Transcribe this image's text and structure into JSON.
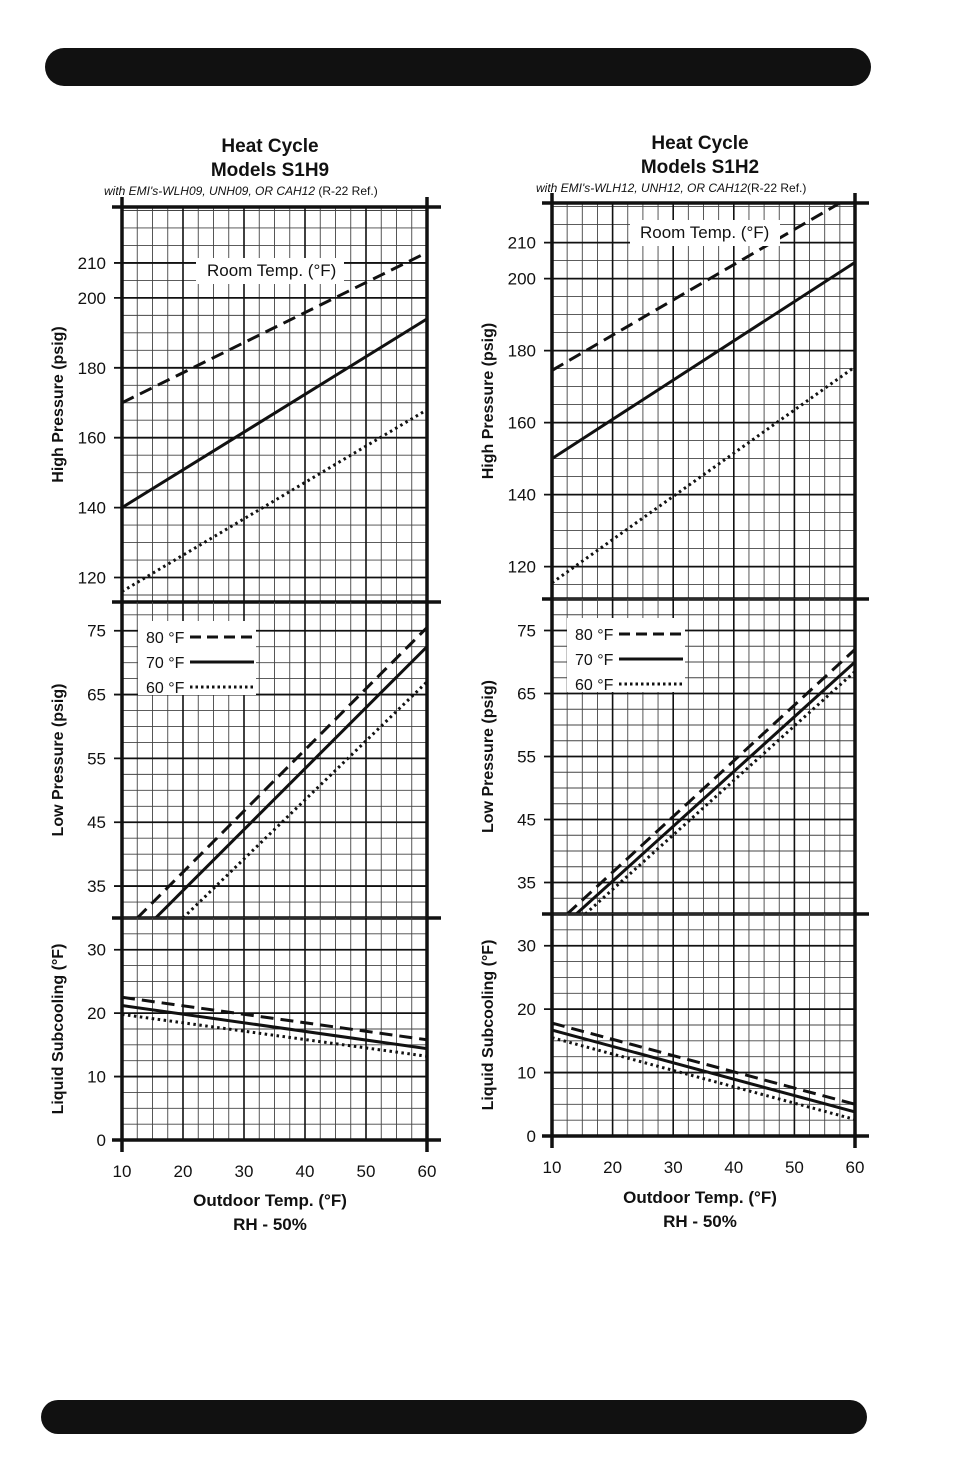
{
  "header_bar": {
    "color": "#111111"
  },
  "footer_bar": {
    "color": "#111111"
  },
  "chart_data": [
    {
      "type": "line",
      "title": "Heat Cycle",
      "subtitle": "Models S1H9",
      "note_main": "with EMI's-WLH09, UNH09, OR CAH12 ",
      "note_suffix": "(R-22 Ref.)",
      "xlabel": "Outdoor Temp. (°F)",
      "xlabel2": "RH - 50%",
      "x_ticks": [
        "10",
        "20",
        "30",
        "40",
        "50",
        "60"
      ],
      "xlim": [
        10,
        60
      ],
      "room_temp_label": "Room Temp. (°F)",
      "legend": [
        {
          "label": "80 °F",
          "style": "dashed"
        },
        {
          "label": "70 °F",
          "style": "solid"
        },
        {
          "label": "60 °F",
          "style": "dotted"
        }
      ],
      "panels": [
        {
          "ylabel": "High Pressure (psig)",
          "ylim": [
            113,
            226
          ],
          "y_ticks": [
            120,
            140,
            160,
            180,
            200,
            210
          ],
          "series": [
            {
              "name": "80 °F",
              "style": "dashed",
              "x": [
                10,
                60
              ],
              "y": [
                170,
                213
              ]
            },
            {
              "name": "70 °F",
              "style": "solid",
              "x": [
                10,
                60
              ],
              "y": [
                140,
                194
              ]
            },
            {
              "name": "60 °F",
              "style": "dotted",
              "x": [
                10,
                60
              ],
              "y": [
                116,
                168
              ]
            }
          ]
        },
        {
          "ylabel": "Low Pressure (psig)",
          "ylim": [
            30,
            79.5
          ],
          "y_ticks": [
            35,
            45,
            55,
            65,
            75
          ],
          "series": [
            {
              "name": "80 °F",
              "style": "dashed",
              "x": [
                12.5,
                60
              ],
              "y": [
                30,
                75.5
              ]
            },
            {
              "name": "70 °F",
              "style": "solid",
              "x": [
                15.5,
                60
              ],
              "y": [
                30,
                72.5
              ]
            },
            {
              "name": "60 °F",
              "style": "dotted",
              "x": [
                20,
                60
              ],
              "y": [
                30,
                67
              ]
            }
          ]
        },
        {
          "ylabel": "Liquid Subcooling (°F)",
          "ylim": [
            0,
            35
          ],
          "y_ticks": [
            0,
            10,
            20,
            30
          ],
          "series": [
            {
              "name": "80 °F",
              "style": "dashed",
              "x": [
                10,
                60
              ],
              "y": [
                22.5,
                15.8
              ]
            },
            {
              "name": "70 °F",
              "style": "solid",
              "x": [
                10,
                60
              ],
              "y": [
                21.2,
                14.4
              ]
            },
            {
              "name": "60 °F",
              "style": "dotted",
              "x": [
                10,
                60
              ],
              "y": [
                19.8,
                13.2
              ]
            }
          ]
        }
      ]
    },
    {
      "type": "line",
      "title": "Heat Cycle",
      "subtitle": "Models S1H2",
      "note_main": "with EMI's-WLH12, UNH12, OR CAH12",
      "note_suffix": "(R-22 Ref.)",
      "xlabel": "Outdoor Temp. (°F)",
      "xlabel2": "RH - 50%",
      "x_ticks": [
        "10",
        "20",
        "30",
        "40",
        "50",
        "60"
      ],
      "xlim": [
        10,
        60
      ],
      "room_temp_label": "Room Temp. (°F)",
      "legend": [
        {
          "label": "80 °F",
          "style": "dashed"
        },
        {
          "label": "70 °F",
          "style": "solid"
        },
        {
          "label": "60 °F",
          "style": "dotted"
        }
      ],
      "panels": [
        {
          "ylabel": "High Pressure (psig)",
          "ylim": [
            111,
            221
          ],
          "y_ticks": [
            120,
            140,
            160,
            180,
            200,
            210
          ],
          "series": [
            {
              "name": "80 °F",
              "style": "dashed",
              "x": [
                10,
                57.5
              ],
              "y": [
                174.5,
                221
              ]
            },
            {
              "name": "70 °F",
              "style": "solid",
              "x": [
                10,
                60
              ],
              "y": [
                150,
                204.5
              ]
            },
            {
              "name": "60 °F",
              "style": "dotted",
              "x": [
                10,
                60
              ],
              "y": [
                115.5,
                175.5
              ]
            }
          ]
        },
        {
          "ylabel": "Low Pressure (psig)",
          "ylim": [
            30,
            80
          ],
          "y_ticks": [
            35,
            45,
            55,
            65,
            75
          ],
          "series": [
            {
              "name": "80 °F",
              "style": "dashed",
              "x": [
                12.5,
                60
              ],
              "y": [
                30,
                72
              ]
            },
            {
              "name": "70 °F",
              "style": "solid",
              "x": [
                14,
                60
              ],
              "y": [
                30,
                70
              ]
            },
            {
              "name": "60 °F",
              "style": "dotted",
              "x": [
                15.5,
                60
              ],
              "y": [
                30,
                68.5
              ]
            }
          ]
        },
        {
          "ylabel": "Liquid Subcooling (°F)",
          "ylim": [
            0,
            35
          ],
          "y_ticks": [
            0,
            10,
            20,
            30
          ],
          "series": [
            {
              "name": "80 °F",
              "style": "dashed",
              "x": [
                10,
                60
              ],
              "y": [
                17.8,
                5.0
              ]
            },
            {
              "name": "70 °F",
              "style": "solid",
              "x": [
                10,
                60
              ],
              "y": [
                16.7,
                3.8
              ]
            },
            {
              "name": "60 °F",
              "style": "dotted",
              "x": [
                10,
                60
              ],
              "y": [
                15.5,
                2.6
              ]
            }
          ]
        }
      ]
    }
  ]
}
